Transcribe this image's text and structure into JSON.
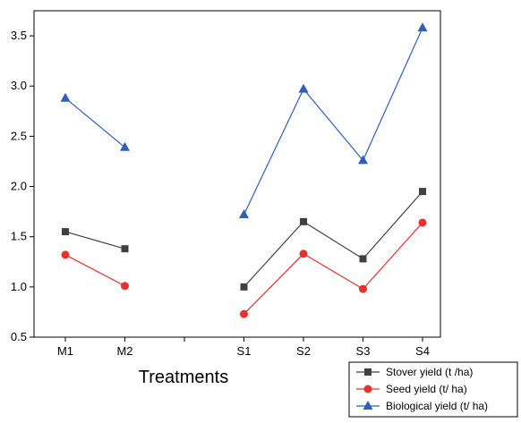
{
  "chart_data": {
    "type": "line",
    "xlabel": "Treatments",
    "ylabel": "",
    "categories": [
      "M1",
      "M2",
      "",
      "S1",
      "S2",
      "S3",
      "S4"
    ],
    "ylim": [
      0.5,
      3.75
    ],
    "yticks": [
      "0.5",
      "1.0",
      "1.5",
      "2.0",
      "2.5",
      "3.0",
      "3.5"
    ],
    "grid": false,
    "legend_position": "bottom-right",
    "series": [
      {
        "name": "Stover yield (t /ha)",
        "color": "#404040",
        "marker": "square",
        "segments": [
          [
            {
              "x": "M1",
              "y": 1.55
            },
            {
              "x": "M2",
              "y": 1.38
            }
          ],
          [
            {
              "x": "S1",
              "y": 1.0
            },
            {
              "x": "S2",
              "y": 1.65
            },
            {
              "x": "S3",
              "y": 1.28
            },
            {
              "x": "S4",
              "y": 1.95
            }
          ]
        ]
      },
      {
        "name": "Seed yield (t/ ha)",
        "color": "#e8302f",
        "marker": "circle",
        "segments": [
          [
            {
              "x": "M1",
              "y": 1.32
            },
            {
              "x": "M2",
              "y": 1.01
            }
          ],
          [
            {
              "x": "S1",
              "y": 0.73
            },
            {
              "x": "S2",
              "y": 1.33
            },
            {
              "x": "S3",
              "y": 0.98
            },
            {
              "x": "S4",
              "y": 1.64
            }
          ]
        ]
      },
      {
        "name": "Biological yield (t/ ha)",
        "color": "#2f5fb8",
        "marker": "triangle",
        "segments": [
          [
            {
              "x": "M1",
              "y": 2.88
            },
            {
              "x": "M2",
              "y": 2.39
            }
          ],
          [
            {
              "x": "S1",
              "y": 1.72
            },
            {
              "x": "S2",
              "y": 2.97
            },
            {
              "x": "S3",
              "y": 2.26
            },
            {
              "x": "S4",
              "y": 3.58
            }
          ]
        ]
      }
    ]
  }
}
